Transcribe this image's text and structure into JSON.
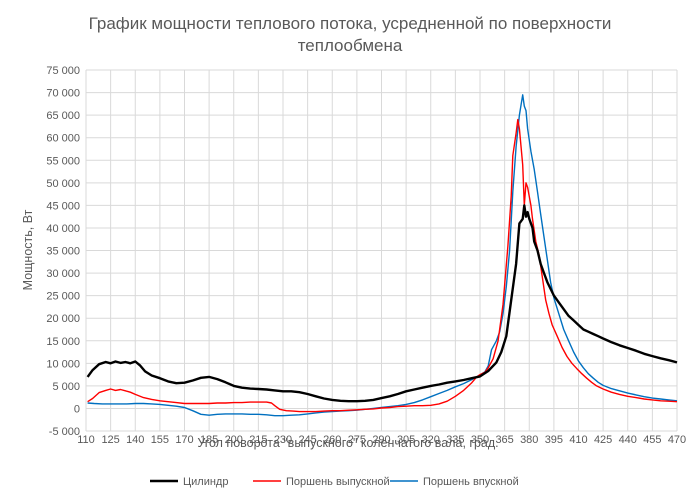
{
  "chart_data": {
    "type": "line",
    "title": [
      "График мощности теплового потока, усредненной по поверхности",
      "теплообмена"
    ],
    "xlabel": "Угол поворота \"выпускного\" коленчатого вала, град.",
    "ylabel": "Мощность, Вт",
    "xlim": [
      110,
      470
    ],
    "ylim": [
      -5000,
      75000
    ],
    "x_ticks": [
      110,
      125,
      140,
      155,
      170,
      185,
      200,
      215,
      230,
      245,
      260,
      275,
      290,
      305,
      320,
      335,
      350,
      365,
      380,
      395,
      410,
      425,
      440,
      455,
      470
    ],
    "y_ticks": [
      -5000,
      0,
      5000,
      10000,
      15000,
      20000,
      25000,
      30000,
      35000,
      40000,
      45000,
      50000,
      55000,
      60000,
      65000,
      70000,
      75000
    ],
    "y_tick_labels": [
      "-5 000",
      "0",
      "5 000",
      "10 000",
      "15 000",
      "20 000",
      "25 000",
      "30 000",
      "35 000",
      "40 000",
      "45 000",
      "50 000",
      "55 000",
      "60 000",
      "65 000",
      "70 000",
      "75 000"
    ],
    "grid": "horizontal",
    "legend_position": "bottom",
    "series": [
      {
        "name": "Цилиндр",
        "color": "#000000",
        "points": [
          [
            111,
            7000
          ],
          [
            114,
            8500
          ],
          [
            118,
            9800
          ],
          [
            122,
            10300
          ],
          [
            125,
            10000
          ],
          [
            128,
            10400
          ],
          [
            131,
            10100
          ],
          [
            134,
            10300
          ],
          [
            137,
            10000
          ],
          [
            140,
            10400
          ],
          [
            143,
            9500
          ],
          [
            146,
            8200
          ],
          [
            150,
            7300
          ],
          [
            155,
            6700
          ],
          [
            160,
            6000
          ],
          [
            165,
            5600
          ],
          [
            170,
            5700
          ],
          [
            175,
            6200
          ],
          [
            180,
            6800
          ],
          [
            185,
            7000
          ],
          [
            190,
            6500
          ],
          [
            195,
            5800
          ],
          [
            200,
            5000
          ],
          [
            205,
            4600
          ],
          [
            210,
            4400
          ],
          [
            215,
            4300
          ],
          [
            220,
            4200
          ],
          [
            225,
            4000
          ],
          [
            230,
            3800
          ],
          [
            235,
            3800
          ],
          [
            240,
            3600
          ],
          [
            245,
            3200
          ],
          [
            250,
            2700
          ],
          [
            255,
            2200
          ],
          [
            260,
            1900
          ],
          [
            265,
            1700
          ],
          [
            270,
            1600
          ],
          [
            275,
            1600
          ],
          [
            280,
            1700
          ],
          [
            285,
            1900
          ],
          [
            290,
            2300
          ],
          [
            295,
            2700
          ],
          [
            300,
            3200
          ],
          [
            305,
            3800
          ],
          [
            310,
            4200
          ],
          [
            315,
            4600
          ],
          [
            320,
            5000
          ],
          [
            325,
            5300
          ],
          [
            330,
            5700
          ],
          [
            335,
            6000
          ],
          [
            340,
            6300
          ],
          [
            345,
            6700
          ],
          [
            350,
            7100
          ],
          [
            355,
            8300
          ],
          [
            360,
            10200
          ],
          [
            363,
            12500
          ],
          [
            366,
            16000
          ],
          [
            369,
            24000
          ],
          [
            372,
            32000
          ],
          [
            374,
            41000
          ],
          [
            376,
            42000
          ],
          [
            377,
            45000
          ],
          [
            378,
            42500
          ],
          [
            379,
            43500
          ],
          [
            380,
            42000
          ],
          [
            382,
            40000
          ],
          [
            383,
            37000
          ],
          [
            385,
            35000
          ],
          [
            387,
            32000
          ],
          [
            389,
            30000
          ],
          [
            391,
            28000
          ],
          [
            393,
            26500
          ],
          [
            395,
            25000
          ],
          [
            398,
            23500
          ],
          [
            401,
            22000
          ],
          [
            404,
            20500
          ],
          [
            407,
            19500
          ],
          [
            410,
            18500
          ],
          [
            413,
            17500
          ],
          [
            416,
            17000
          ],
          [
            419,
            16500
          ],
          [
            422,
            16000
          ],
          [
            425,
            15500
          ],
          [
            430,
            14700
          ],
          [
            435,
            14000
          ],
          [
            440,
            13400
          ],
          [
            445,
            12800
          ],
          [
            450,
            12100
          ],
          [
            455,
            11600
          ],
          [
            460,
            11100
          ],
          [
            465,
            10700
          ],
          [
            470,
            10200
          ]
        ]
      },
      {
        "name": "Поршень выпускной",
        "color": "#ff0000",
        "points": [
          [
            111,
            1500
          ],
          [
            114,
            2200
          ],
          [
            118,
            3500
          ],
          [
            122,
            4000
          ],
          [
            125,
            4300
          ],
          [
            128,
            4000
          ],
          [
            131,
            4200
          ],
          [
            134,
            3900
          ],
          [
            137,
            3600
          ],
          [
            140,
            3100
          ],
          [
            145,
            2400
          ],
          [
            150,
            2000
          ],
          [
            155,
            1700
          ],
          [
            160,
            1500
          ],
          [
            165,
            1300
          ],
          [
            170,
            1100
          ],
          [
            175,
            1100
          ],
          [
            180,
            1100
          ],
          [
            185,
            1100
          ],
          [
            190,
            1200
          ],
          [
            195,
            1200
          ],
          [
            200,
            1300
          ],
          [
            205,
            1300
          ],
          [
            210,
            1400
          ],
          [
            215,
            1400
          ],
          [
            220,
            1400
          ],
          [
            223,
            1200
          ],
          [
            225,
            600
          ],
          [
            228,
            -200
          ],
          [
            232,
            -500
          ],
          [
            236,
            -600
          ],
          [
            240,
            -700
          ],
          [
            245,
            -700
          ],
          [
            250,
            -700
          ],
          [
            255,
            -600
          ],
          [
            260,
            -500
          ],
          [
            265,
            -500
          ],
          [
            270,
            -400
          ],
          [
            275,
            -300
          ],
          [
            280,
            -200
          ],
          [
            285,
            -100
          ],
          [
            290,
            100
          ],
          [
            295,
            200
          ],
          [
            300,
            400
          ],
          [
            305,
            500
          ],
          [
            310,
            600
          ],
          [
            315,
            600
          ],
          [
            320,
            700
          ],
          [
            325,
            1000
          ],
          [
            330,
            1600
          ],
          [
            335,
            2700
          ],
          [
            340,
            4000
          ],
          [
            345,
            5700
          ],
          [
            348,
            7000
          ],
          [
            350,
            7500
          ],
          [
            353,
            8000
          ],
          [
            355,
            9000
          ],
          [
            358,
            11000
          ],
          [
            361,
            15000
          ],
          [
            364,
            23000
          ],
          [
            367,
            36000
          ],
          [
            369,
            47000
          ],
          [
            370,
            56000
          ],
          [
            372,
            61000
          ],
          [
            373,
            64000
          ],
          [
            374,
            62000
          ],
          [
            376,
            54000
          ],
          [
            377,
            45000
          ],
          [
            378,
            50000
          ],
          [
            379,
            49000
          ],
          [
            381,
            45000
          ],
          [
            382,
            42000
          ],
          [
            384,
            37000
          ],
          [
            386,
            34000
          ],
          [
            388,
            29000
          ],
          [
            390,
            24000
          ],
          [
            392,
            21000
          ],
          [
            394,
            18500
          ],
          [
            397,
            16000
          ],
          [
            400,
            13500
          ],
          [
            403,
            11500
          ],
          [
            406,
            10000
          ],
          [
            409,
            8800
          ],
          [
            412,
            7700
          ],
          [
            415,
            6700
          ],
          [
            418,
            5800
          ],
          [
            421,
            5000
          ],
          [
            425,
            4300
          ],
          [
            430,
            3600
          ],
          [
            435,
            3100
          ],
          [
            440,
            2700
          ],
          [
            445,
            2400
          ],
          [
            450,
            2100
          ],
          [
            455,
            1900
          ],
          [
            460,
            1700
          ],
          [
            465,
            1600
          ],
          [
            470,
            1500
          ]
        ]
      },
      {
        "name": "Поршень впускной",
        "color": "#0070c0",
        "points": [
          [
            111,
            1200
          ],
          [
            115,
            1100
          ],
          [
            120,
            1000
          ],
          [
            125,
            1000
          ],
          [
            130,
            1000
          ],
          [
            135,
            1000
          ],
          [
            140,
            1100
          ],
          [
            145,
            1100
          ],
          [
            150,
            1000
          ],
          [
            155,
            900
          ],
          [
            160,
            700
          ],
          [
            165,
            500
          ],
          [
            170,
            200
          ],
          [
            175,
            -500
          ],
          [
            180,
            -1300
          ],
          [
            185,
            -1500
          ],
          [
            190,
            -1300
          ],
          [
            195,
            -1200
          ],
          [
            200,
            -1200
          ],
          [
            205,
            -1200
          ],
          [
            210,
            -1300
          ],
          [
            215,
            -1300
          ],
          [
            220,
            -1400
          ],
          [
            225,
            -1600
          ],
          [
            230,
            -1600
          ],
          [
            235,
            -1500
          ],
          [
            240,
            -1400
          ],
          [
            245,
            -1200
          ],
          [
            250,
            -1000
          ],
          [
            255,
            -800
          ],
          [
            260,
            -700
          ],
          [
            265,
            -600
          ],
          [
            270,
            -500
          ],
          [
            275,
            -400
          ],
          [
            280,
            -200
          ],
          [
            285,
            0
          ],
          [
            290,
            200
          ],
          [
            295,
            400
          ],
          [
            300,
            600
          ],
          [
            305,
            900
          ],
          [
            310,
            1300
          ],
          [
            315,
            1900
          ],
          [
            320,
            2600
          ],
          [
            325,
            3300
          ],
          [
            330,
            4000
          ],
          [
            335,
            4800
          ],
          [
            340,
            5500
          ],
          [
            345,
            6400
          ],
          [
            348,
            7000
          ],
          [
            350,
            7400
          ],
          [
            353,
            8100
          ],
          [
            355,
            9400
          ],
          [
            357,
            13000
          ],
          [
            360,
            15000
          ],
          [
            362,
            17000
          ],
          [
            364,
            21000
          ],
          [
            366,
            27000
          ],
          [
            368,
            35000
          ],
          [
            370,
            48000
          ],
          [
            372,
            58000
          ],
          [
            374,
            65000
          ],
          [
            376,
            69500
          ],
          [
            377,
            67000
          ],
          [
            378,
            66000
          ],
          [
            379,
            62000
          ],
          [
            381,
            57000
          ],
          [
            383,
            53000
          ],
          [
            385,
            48000
          ],
          [
            387,
            43000
          ],
          [
            389,
            38000
          ],
          [
            391,
            33000
          ],
          [
            393,
            28000
          ],
          [
            395,
            24500
          ],
          [
            398,
            21000
          ],
          [
            401,
            17500
          ],
          [
            404,
            15000
          ],
          [
            407,
            12500
          ],
          [
            410,
            10500
          ],
          [
            413,
            9000
          ],
          [
            416,
            7700
          ],
          [
            419,
            6700
          ],
          [
            422,
            5800
          ],
          [
            425,
            5100
          ],
          [
            430,
            4400
          ],
          [
            435,
            3900
          ],
          [
            440,
            3400
          ],
          [
            445,
            3000
          ],
          [
            450,
            2600
          ],
          [
            455,
            2300
          ],
          [
            460,
            2100
          ],
          [
            465,
            1900
          ],
          [
            470,
            1700
          ]
        ]
      }
    ]
  }
}
